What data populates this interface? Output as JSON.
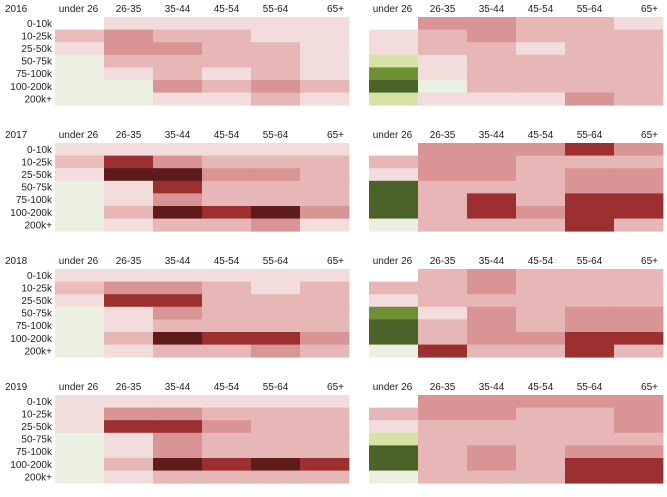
{
  "chart_data": {
    "type": "heatmap",
    "x_categories": [
      "under 26",
      "26-35",
      "35-44",
      "45-54",
      "55-64",
      "65+"
    ],
    "y_categories": [
      "0-10k",
      "10-25k",
      "25-50k",
      "50-75k",
      "75-100k",
      "100-200k",
      "200k+"
    ],
    "palette": {
      "0": "#ecf0e0",
      "1": "#f2dcdc",
      "2": "#ebbcbc",
      "3": "#e7b6b6",
      "4": "#d99595",
      "5": "#9c3030",
      "6": "#5d1b1b",
      "7": "#d6e2a6",
      "8": "#6e9136",
      "9": "#4b6228",
      "10": "#ffffff"
    },
    "panels": [
      {
        "label": "2016",
        "grid": [
          [
            10,
            1,
            1,
            1,
            1,
            1
          ],
          [
            2,
            4,
            3,
            3,
            1,
            1
          ],
          [
            1,
            4,
            4,
            3,
            3,
            1
          ],
          [
            0,
            3,
            3,
            3,
            3,
            1
          ],
          [
            0,
            1,
            3,
            1,
            3,
            1
          ],
          [
            0,
            0,
            4,
            3,
            4,
            3
          ],
          [
            0,
            0,
            1,
            1,
            3,
            1
          ]
        ]
      },
      {
        "label": "",
        "grid": [
          [
            10,
            4,
            4,
            3,
            3,
            1
          ],
          [
            1,
            3,
            4,
            3,
            3,
            3
          ],
          [
            1,
            3,
            3,
            1,
            3,
            3
          ],
          [
            7,
            1,
            3,
            3,
            3,
            3
          ],
          [
            8,
            1,
            3,
            3,
            3,
            3
          ],
          [
            9,
            0,
            3,
            3,
            3,
            3
          ],
          [
            7,
            1,
            1,
            1,
            4,
            3
          ]
        ]
      },
      {
        "label": "2017",
        "grid": [
          [
            1,
            1,
            1,
            1,
            1,
            1
          ],
          [
            2,
            5,
            4,
            3,
            3,
            3
          ],
          [
            1,
            6,
            6,
            4,
            4,
            3
          ],
          [
            0,
            1,
            5,
            3,
            3,
            3
          ],
          [
            0,
            1,
            4,
            3,
            3,
            3
          ],
          [
            0,
            3,
            6,
            5,
            6,
            4
          ],
          [
            0,
            1,
            3,
            3,
            4,
            1
          ]
        ]
      },
      {
        "label": "",
        "grid": [
          [
            10,
            4,
            4,
            4,
            5,
            4
          ],
          [
            3,
            4,
            4,
            3,
            3,
            3
          ],
          [
            1,
            4,
            4,
            3,
            4,
            4
          ],
          [
            9,
            3,
            3,
            3,
            4,
            4
          ],
          [
            9,
            3,
            5,
            3,
            5,
            5
          ],
          [
            9,
            3,
            5,
            4,
            5,
            5
          ],
          [
            0,
            3,
            3,
            3,
            5,
            3
          ]
        ]
      },
      {
        "label": "2018",
        "grid": [
          [
            1,
            1,
            1,
            1,
            1,
            1
          ],
          [
            2,
            4,
            4,
            3,
            1,
            3
          ],
          [
            1,
            5,
            5,
            3,
            3,
            3
          ],
          [
            0,
            1,
            4,
            3,
            3,
            3
          ],
          [
            0,
            1,
            3,
            3,
            3,
            3
          ],
          [
            0,
            3,
            6,
            5,
            5,
            4
          ],
          [
            0,
            1,
            3,
            3,
            4,
            3
          ]
        ]
      },
      {
        "label": "",
        "grid": [
          [
            10,
            3,
            4,
            3,
            3,
            3
          ],
          [
            3,
            3,
            4,
            3,
            3,
            3
          ],
          [
            1,
            3,
            3,
            3,
            3,
            3
          ],
          [
            8,
            1,
            4,
            3,
            4,
            4
          ],
          [
            9,
            3,
            4,
            3,
            4,
            4
          ],
          [
            9,
            3,
            4,
            4,
            5,
            5
          ],
          [
            0,
            5,
            3,
            3,
            5,
            3
          ]
        ]
      },
      {
        "label": "2019",
        "grid": [
          [
            1,
            1,
            1,
            1,
            1,
            1
          ],
          [
            1,
            4,
            4,
            3,
            3,
            3
          ],
          [
            1,
            5,
            5,
            4,
            3,
            3
          ],
          [
            0,
            1,
            4,
            3,
            3,
            3
          ],
          [
            0,
            1,
            4,
            3,
            3,
            3
          ],
          [
            0,
            3,
            6,
            5,
            6,
            5
          ],
          [
            0,
            1,
            3,
            3,
            3,
            3
          ]
        ]
      },
      {
        "label": "",
        "grid": [
          [
            10,
            4,
            4,
            4,
            4,
            4
          ],
          [
            3,
            4,
            4,
            3,
            3,
            4
          ],
          [
            1,
            3,
            3,
            3,
            3,
            4
          ],
          [
            7,
            3,
            3,
            3,
            3,
            3
          ],
          [
            9,
            3,
            4,
            3,
            4,
            4
          ],
          [
            9,
            3,
            4,
            3,
            5,
            5
          ],
          [
            0,
            3,
            3,
            3,
            5,
            5
          ]
        ]
      }
    ]
  }
}
